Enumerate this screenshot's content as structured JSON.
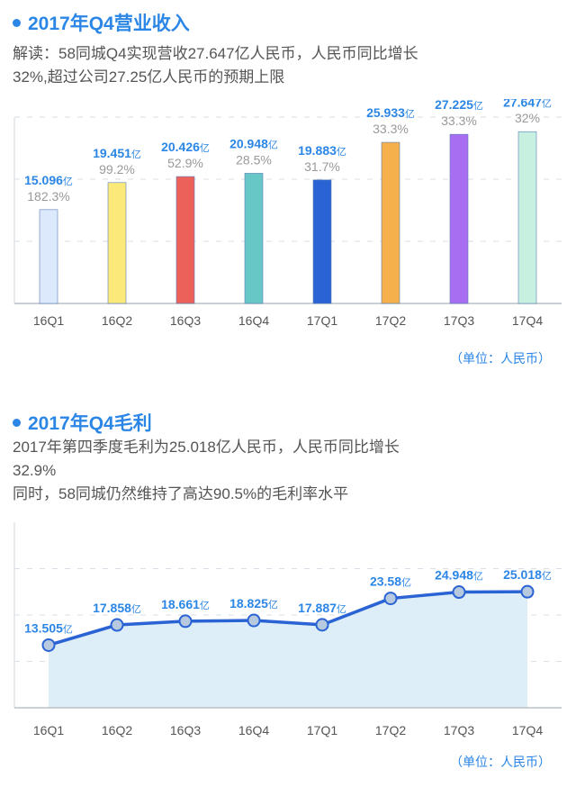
{
  "section1": {
    "title": "2017年Q4营业收入",
    "desc_line1": "解读：58同城Q4实现营收27.647亿人民币，人民币同比增长",
    "desc_line2": "32%,超过公司27.25亿人民币的预期上限",
    "unit": "（单位：人民币）"
  },
  "section2": {
    "title": "2017年Q4毛利",
    "desc_line1": "2017年第四季度毛利为25.018亿人民币，人民币同比增长",
    "desc_line2": "32.9%",
    "desc_line3": "同时，58同城仍然维持了高达90.5%的毛利率水平",
    "unit": "（单位：人民币）"
  },
  "chart_data": [
    {
      "type": "bar",
      "categories": [
        "16Q1",
        "16Q2",
        "16Q3",
        "16Q4",
        "17Q1",
        "17Q2",
        "17Q3",
        "17Q4"
      ],
      "values": [
        15.096,
        19.451,
        20.426,
        20.948,
        19.883,
        25.933,
        27.225,
        27.647
      ],
      "value_labels": [
        "15.096",
        "19.451",
        "20.426",
        "20.948",
        "19.883",
        "25.933",
        "27.225",
        "27.647"
      ],
      "value_unit": "亿",
      "growth_labels": [
        "182.3%",
        "99.2%",
        "52.9%",
        "28.5%",
        "31.7%",
        "33.3%",
        "33.3%",
        "32%"
      ],
      "bar_colors": [
        "#dce8fb",
        "#fbe97a",
        "#ec615a",
        "#67c6c6",
        "#2a63d4",
        "#f5b04c",
        "#a86ef2",
        "#c8f0e0"
      ],
      "ylim": [
        0,
        30
      ],
      "grid": true
    },
    {
      "type": "area",
      "categories": [
        "16Q1",
        "16Q2",
        "16Q3",
        "16Q4",
        "17Q1",
        "17Q2",
        "17Q3",
        "17Q4"
      ],
      "values": [
        13.505,
        17.858,
        18.661,
        18.825,
        17.887,
        23.58,
        24.948,
        25.018
      ],
      "value_labels": [
        "13.505",
        "17.858",
        "18.661",
        "18.825",
        "17.887",
        "23.58",
        "24.948",
        "25.018"
      ],
      "value_unit": "亿",
      "line_color": "#2a63d4",
      "fill_color": "#ddeef8",
      "ylim": [
        0,
        40
      ],
      "grid": true
    }
  ]
}
